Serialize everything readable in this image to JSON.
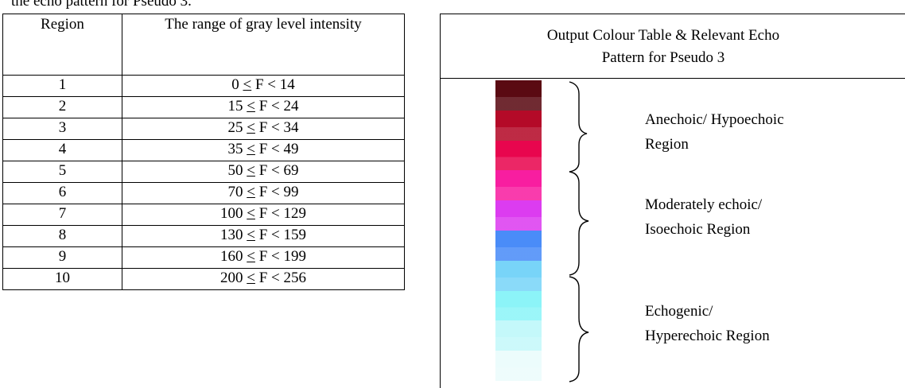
{
  "caption": "the echo pattern for Pseudo 3.",
  "table": {
    "headers": [
      "Region",
      "The range of gray level intensity"
    ],
    "rows": [
      {
        "region": "1",
        "range": "0 < F < 14"
      },
      {
        "region": "2",
        "range": "15 < F < 24"
      },
      {
        "region": "3",
        "range": "25 < F < 34"
      },
      {
        "region": "4",
        "range": "35 < F < 49"
      },
      {
        "region": "5",
        "range": "50 < F < 69"
      },
      {
        "region": "6",
        "range": "70 < F < 99"
      },
      {
        "region": "7",
        "range": "100 < F < 129"
      },
      {
        "region": "8",
        "range": "130 < F < 159"
      },
      {
        "region": "9",
        "range": "160 < F < 199"
      },
      {
        "region": "10",
        "range": "200 < F < 256"
      }
    ]
  },
  "panel": {
    "title_line1": "Output Colour Table & Relevant Echo",
    "title_line2": "Pattern for Pseudo 3",
    "colour_swatches": [
      "#5a0a12",
      "#b40a28",
      "#e8064e",
      "#f81ea0",
      "#dc3cf0",
      "#4a8cf8",
      "#78d4f8",
      "#8cf4f8",
      "#c4f8fa",
      "#ecfcfc"
    ],
    "regions": [
      {
        "line1": "Anechoic/ Hypoechoic",
        "line2": "Region"
      },
      {
        "line1": "Moderately echoic/",
        "line2": "Isoechoic Region"
      },
      {
        "line1": "Echogenic/",
        "line2": "Hyperechoic Region"
      }
    ]
  }
}
